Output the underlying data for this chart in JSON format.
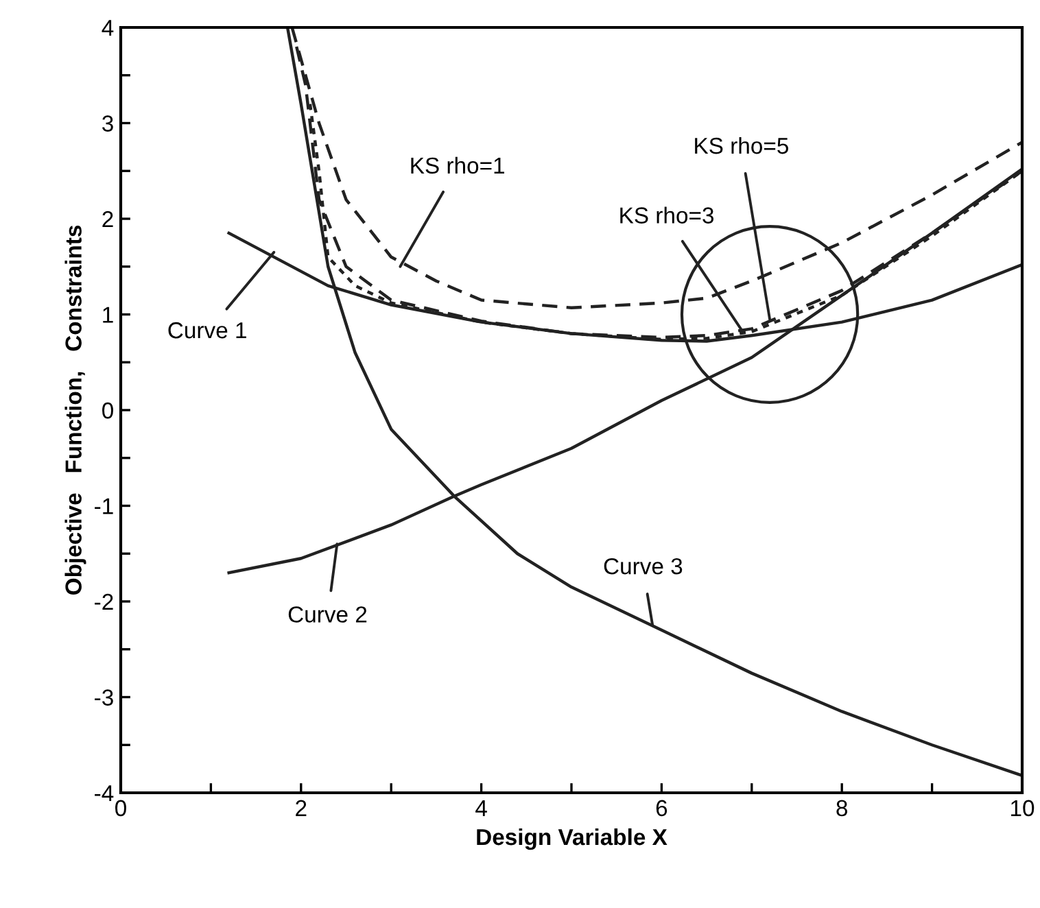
{
  "chart_data": {
    "type": "line",
    "xlabel": "Design Variable X",
    "ylabel": "Objective   Function,   Constraints",
    "xlim": [
      0,
      10
    ],
    "ylim": [
      -4,
      4
    ],
    "xticks": [
      0,
      {
        "value": 1,
        "label": null
      },
      2,
      {
        "value": 3,
        "label": null
      },
      4,
      {
        "value": 5,
        "label": null
      },
      6,
      {
        "value": 7,
        "label": null
      },
      8,
      {
        "value": 9,
        "label": null
      },
      10
    ],
    "yticks": [
      -4,
      {
        "value": -3.5,
        "label": null
      },
      -3,
      {
        "value": -2.5,
        "label": null
      },
      -2,
      {
        "value": -1.5,
        "label": null
      },
      -1,
      {
        "value": -0.5,
        "label": null
      },
      0,
      {
        "value": 0.5,
        "label": null
      },
      1,
      {
        "value": 1.5,
        "label": null
      },
      2,
      {
        "value": 2.5,
        "label": null
      },
      3,
      {
        "value": 3.5,
        "label": null
      },
      4
    ],
    "grid": false,
    "legend": false,
    "marker": "none",
    "series": [
      {
        "color": "#222222",
        "line_style": "solid",
        "x": [
          1.2,
          2.3,
          3,
          4,
          5,
          6,
          6.5,
          7,
          8,
          9,
          10
        ],
        "values": [
          1.85,
          1.3,
          1.1,
          0.92,
          0.8,
          0.73,
          0.72,
          0.78,
          0.92,
          1.15,
          1.52
        ]
      },
      {
        "color": "#222222",
        "line_style": "solid",
        "x": [
          1.2,
          2,
          3,
          3.7,
          4,
          5,
          6,
          7,
          8,
          9,
          10
        ],
        "values": [
          -1.7,
          -1.55,
          -1.2,
          -0.9,
          -0.78,
          -0.4,
          0.1,
          0.55,
          1.2,
          1.85,
          2.52
        ]
      },
      {
        "color": "#222222",
        "line_style": "solid",
        "x": [
          1.85,
          2,
          2.3,
          2.6,
          3,
          3.7,
          4.4,
          5,
          6,
          7,
          8,
          9,
          10
        ],
        "values": [
          4,
          3.2,
          1.5,
          0.6,
          -0.2,
          -0.9,
          -1.5,
          -1.85,
          -2.3,
          -2.75,
          -3.15,
          -3.5,
          -3.82
        ]
      },
      {
        "color": "#222222",
        "line_style": "dashed",
        "x": [
          1.9,
          2.2,
          2.5,
          3,
          3.5,
          4,
          5,
          6,
          6.5,
          7,
          8,
          9,
          10
        ],
        "values": [
          4,
          3,
          2.2,
          1.6,
          1.35,
          1.15,
          1.07,
          1.12,
          1.17,
          1.35,
          1.75,
          2.25,
          2.8
        ]
      },
      {
        "color": "#222222",
        "line_style": "dashed",
        "x": [
          1.95,
          2.05,
          2.2,
          2.5,
          3,
          4,
          5,
          6,
          6.5,
          7,
          8,
          9,
          10
        ],
        "values": [
          3.8,
          3.4,
          2.2,
          1.5,
          1.15,
          0.93,
          0.8,
          0.76,
          0.78,
          0.85,
          1.25,
          1.85,
          2.5
        ]
      },
      {
        "color": "#222222",
        "line_style": "dotted",
        "x": [
          2.1,
          2.2,
          2.3,
          2.6,
          3,
          4,
          5,
          6,
          6.5,
          7,
          8,
          9,
          10
        ],
        "values": [
          3.2,
          2.5,
          1.6,
          1.3,
          1.12,
          0.92,
          0.8,
          0.74,
          0.75,
          0.82,
          1.2,
          1.82,
          2.5
        ]
      }
    ],
    "annotations": [
      {
        "text": "Curve 1",
        "x": 1.7,
        "y": 1.65
      },
      {
        "text": "Curve 2",
        "x": 2.4,
        "y": -1.4
      },
      {
        "text": "Curve 3",
        "x": 5.9,
        "y": -2.25
      },
      {
        "text": "KS rho=1",
        "x": 3.1,
        "y": 1.5
      },
      {
        "text": "KS rho=3",
        "x": 6.9,
        "y": 0.82
      },
      {
        "text": "KS rho=5",
        "x": 7.2,
        "y": 0.95
      }
    ]
  }
}
